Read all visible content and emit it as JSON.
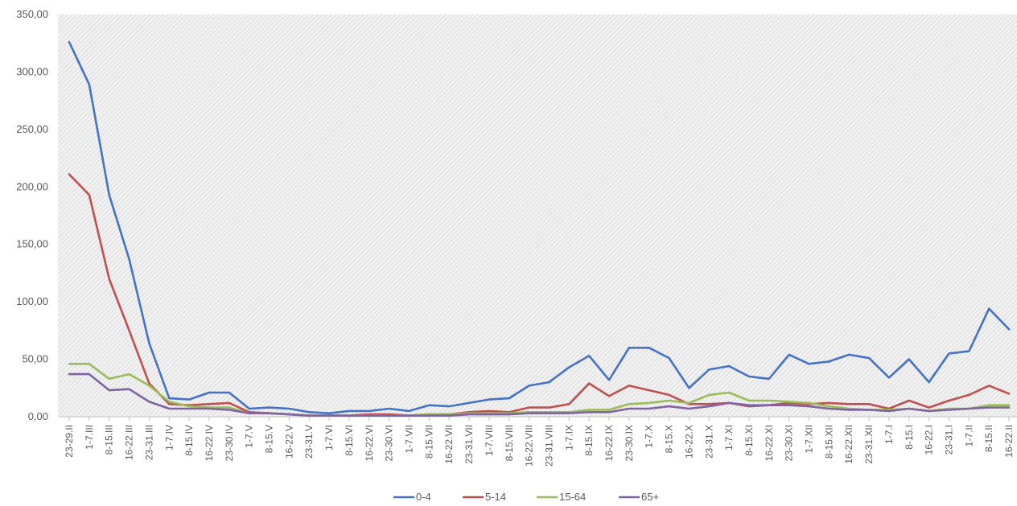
{
  "chart_data": {
    "type": "line",
    "title": "",
    "xlabel": "",
    "ylabel": "",
    "ylim": [
      0,
      350
    ],
    "y_ticks": [
      "0,00",
      "50,00",
      "100,00",
      "150,00",
      "200,00",
      "250,00",
      "300,00",
      "350,00"
    ],
    "y_tick_values": [
      0,
      50,
      100,
      150,
      200,
      250,
      300,
      350
    ],
    "grid": false,
    "plot_background": "hatched-grey",
    "legend_position": "bottom-center",
    "categories": [
      "23-29.II",
      "1-7.III",
      "8-15.III",
      "16-22.III",
      "23-31.III",
      "1-7.IV",
      "8-15.IV",
      "16-22.IV",
      "23-30.IV",
      "1-7.V",
      "8-15.V",
      "16-22.V",
      "23-31.V",
      "1-7.VI",
      "8-15.VI",
      "16-22.VI",
      "23-30.VI",
      "1-7.VII",
      "8-15.VII",
      "16-22.VII",
      "23-31.VII",
      "1-7.VIII",
      "8-15.VIII",
      "16-22.VIII",
      "23-31.VIII",
      "1-7.IX",
      "8-15.IX",
      "16-22.IX",
      "23-30.IX",
      "1-7.X",
      "8-15.X",
      "16-22.X",
      "23-31.X",
      "1-7.XI",
      "8-15.XI",
      "16-22.XI",
      "23-30.XI",
      "1-7.XII",
      "8-15.XII",
      "16-22.XII",
      "23-31.XII",
      "1-7.I",
      "8-15.I",
      "16-22.I",
      "23-31.I",
      "1-7.II",
      "8-15.II",
      "16-22.II"
    ],
    "series": [
      {
        "name": "0-4",
        "color": "#4472c4",
        "values": [
          326,
          289,
          193,
          137,
          64,
          16,
          15,
          21,
          21,
          7,
          8,
          7,
          4,
          3,
          5,
          5,
          7,
          5,
          10,
          9,
          12,
          15,
          16,
          27,
          30,
          43,
          53,
          32,
          60,
          60,
          51,
          25,
          41,
          44,
          35,
          33,
          54,
          46,
          48,
          54,
          51,
          34,
          50,
          30,
          55,
          57,
          94,
          76
        ]
      },
      {
        "name": "5-14",
        "color": "#c0504d",
        "values": [
          211,
          193,
          120,
          75,
          29,
          11,
          10,
          11,
          12,
          4,
          3,
          2,
          1,
          1,
          1,
          2,
          2,
          1,
          2,
          2,
          4,
          5,
          4,
          8,
          8,
          11,
          29,
          18,
          27,
          23,
          19,
          11,
          11,
          12,
          9,
          10,
          12,
          11,
          12,
          11,
          11,
          7,
          14,
          8,
          14,
          19,
          27,
          20
        ]
      },
      {
        "name": "15-64",
        "color": "#9bbb59",
        "values": [
          46,
          46,
          33,
          37,
          27,
          13,
          9,
          8,
          8,
          3,
          3,
          2,
          1,
          1,
          1,
          1,
          1,
          1,
          2,
          2,
          3,
          3,
          3,
          4,
          4,
          4,
          6,
          6,
          11,
          12,
          14,
          12,
          19,
          21,
          14,
          14,
          13,
          12,
          9,
          7,
          6,
          6,
          7,
          5,
          7,
          7,
          10,
          10
        ]
      },
      {
        "name": "65+",
        "color": "#8064a2",
        "values": [
          37,
          37,
          23,
          24,
          13,
          7,
          7,
          7,
          6,
          3,
          3,
          2,
          1,
          1,
          1,
          1,
          1,
          1,
          1,
          1,
          2,
          2,
          2,
          3,
          3,
          3,
          4,
          4,
          7,
          7,
          9,
          7,
          9,
          12,
          10,
          10,
          10,
          9,
          7,
          6,
          6,
          5,
          7,
          5,
          6,
          7,
          8,
          8
        ]
      }
    ]
  }
}
